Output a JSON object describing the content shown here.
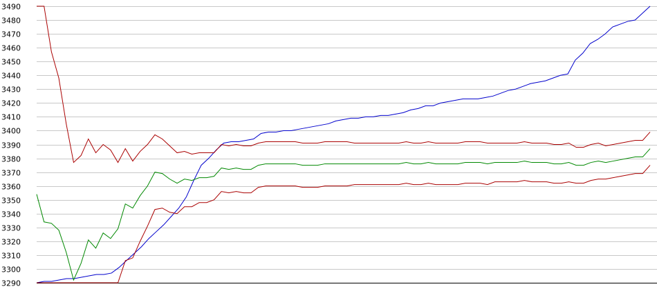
{
  "chart_data": {
    "type": "line",
    "title": "",
    "xlabel": "",
    "ylabel": "",
    "ylim": [
      3290,
      3490
    ],
    "yticks": [
      3290,
      3300,
      3310,
      3320,
      3330,
      3340,
      3350,
      3360,
      3370,
      3380,
      3390,
      3400,
      3410,
      3420,
      3430,
      3440,
      3450,
      3460,
      3470,
      3480,
      3490
    ],
    "grid": true,
    "legend": "none",
    "series": [
      {
        "color": "#0000cc",
        "values": [
          3290,
          3291,
          3291,
          3292,
          3293,
          3293,
          3294,
          3295,
          3296,
          3296,
          3297,
          3301,
          3306,
          3311,
          3316,
          3322,
          3327,
          3332,
          3338,
          3344,
          3352,
          3364,
          3375,
          3380,
          3386,
          3391,
          3392,
          3392,
          3393,
          3394,
          3398,
          3399,
          3399,
          3400,
          3400,
          3401,
          3402,
          3403,
          3404,
          3405,
          3407,
          3408,
          3409,
          3409,
          3410,
          3410,
          3411,
          3411,
          3412,
          3413,
          3415,
          3416,
          3418,
          3418,
          3420,
          3421,
          3422,
          3423,
          3423,
          3423,
          3424,
          3425,
          3427,
          3429,
          3430,
          3432,
          3434,
          3435,
          3436,
          3438,
          3440,
          3441,
          3451,
          3456,
          3463,
          3466,
          3470,
          3475,
          3477,
          3479,
          3480,
          3485,
          3490
        ]
      },
      {
        "color": "#aa0000",
        "values": [
          3490,
          3490,
          3457,
          3438,
          3405,
          3377,
          3382,
          3394,
          3384,
          3390,
          3386,
          3377,
          3387,
          3378,
          3385,
          3390,
          3397,
          3394,
          3389,
          3384,
          3385,
          3383,
          3384,
          3384,
          3384,
          3390,
          3389,
          3390,
          3389,
          3389,
          3391,
          3392,
          3392,
          3392,
          3392,
          3392,
          3391,
          3391,
          3391,
          3392,
          3392,
          3392,
          3392,
          3391,
          3391,
          3391,
          3391,
          3391,
          3391,
          3391,
          3392,
          3391,
          3391,
          3392,
          3391,
          3391,
          3391,
          3391,
          3392,
          3392,
          3392,
          3391,
          3391,
          3391,
          3391,
          3391,
          3392,
          3391,
          3391,
          3391,
          3390,
          3390,
          3391,
          3388,
          3388,
          3390,
          3391,
          3389,
          3390,
          3391,
          3392,
          3393,
          3393,
          3399
        ]
      },
      {
        "color": "#008800",
        "values": [
          3354,
          3334,
          3333,
          3328,
          3312,
          3292,
          3304,
          3321,
          3315,
          3326,
          3322,
          3329,
          3347,
          3344,
          3353,
          3360,
          3370,
          3369,
          3365,
          3362,
          3365,
          3364,
          3366,
          3366,
          3367,
          3373,
          3372,
          3373,
          3372,
          3372,
          3375,
          3376,
          3376,
          3376,
          3376,
          3376,
          3375,
          3375,
          3375,
          3376,
          3376,
          3376,
          3376,
          3376,
          3376,
          3376,
          3376,
          3376,
          3376,
          3376,
          3377,
          3376,
          3376,
          3377,
          3376,
          3376,
          3376,
          3376,
          3377,
          3377,
          3377,
          3376,
          3377,
          3377,
          3377,
          3377,
          3378,
          3377,
          3377,
          3377,
          3376,
          3376,
          3377,
          3375,
          3375,
          3377,
          3378,
          3377,
          3378,
          3379,
          3380,
          3381,
          3381,
          3387
        ]
      },
      {
        "color": "#aa0000",
        "values": [
          3290,
          3290,
          3290,
          3290,
          3290,
          3290,
          3290,
          3290,
          3290,
          3290,
          3290,
          3290,
          3306,
          3308,
          3320,
          3331,
          3343,
          3344,
          3341,
          3340,
          3345,
          3345,
          3348,
          3348,
          3350,
          3356,
          3355,
          3356,
          3355,
          3355,
          3359,
          3360,
          3360,
          3360,
          3360,
          3360,
          3359,
          3359,
          3359,
          3360,
          3360,
          3360,
          3360,
          3361,
          3361,
          3361,
          3361,
          3361,
          3361,
          3361,
          3362,
          3361,
          3361,
          3362,
          3361,
          3361,
          3361,
          3361,
          3362,
          3362,
          3362,
          3361,
          3363,
          3363,
          3363,
          3363,
          3364,
          3363,
          3363,
          3363,
          3362,
          3362,
          3363,
          3362,
          3362,
          3364,
          3365,
          3365,
          3366,
          3367,
          3368,
          3369,
          3369,
          3375
        ]
      }
    ]
  }
}
